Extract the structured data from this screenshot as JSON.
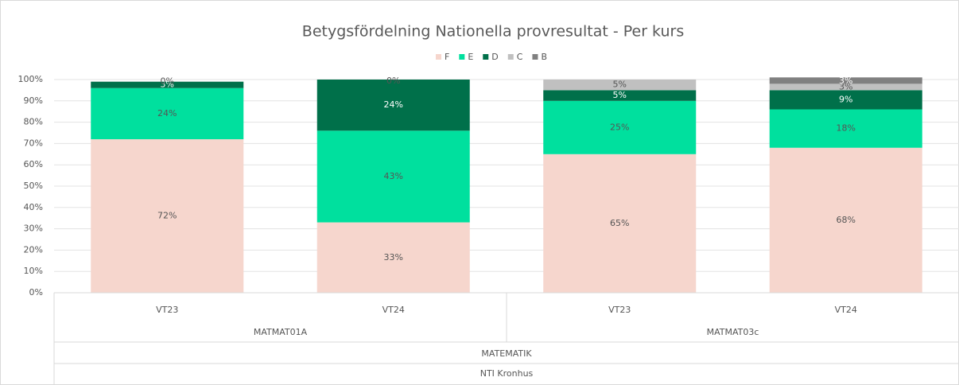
{
  "chart_data": {
    "type": "stacked_bar",
    "title": "Betygsfördelning Nationella provresultat - Per kurs",
    "categories": [
      "VT23",
      "VT24",
      "VT23",
      "VT24"
    ],
    "groups": [
      {
        "label": "MATMAT01A",
        "span": 2
      },
      {
        "label": "MATMAT03c",
        "span": 2
      }
    ],
    "group_levels": [
      "MATEMATIK",
      "NTI Kronhus"
    ],
    "series": [
      {
        "name": "F",
        "color": "#f6d6cd",
        "values": [
          72,
          33,
          65,
          68
        ],
        "value_labels": [
          "72%",
          "33%",
          "65%",
          "68%"
        ]
      },
      {
        "name": "E",
        "color": "#00e09e",
        "values": [
          24,
          43,
          25,
          18
        ],
        "value_labels": [
          "24%",
          "43%",
          "25%",
          "18%"
        ]
      },
      {
        "name": "D",
        "color": "#00704a",
        "values": [
          3,
          24,
          5,
          9
        ],
        "value_labels": [
          "3%",
          "24%",
          "5%",
          "9%"
        ]
      },
      {
        "name": "C",
        "color": "#c0c0c0",
        "values": [
          0,
          0,
          5,
          3
        ],
        "value_labels": [
          "0%",
          "0%",
          "5%",
          "3%"
        ]
      },
      {
        "name": "B",
        "color": "#808080",
        "values": [
          null,
          null,
          null,
          3
        ],
        "value_labels": [
          null,
          null,
          null,
          "3%"
        ]
      }
    ],
    "ylim": [
      0,
      100
    ],
    "yticks": [
      {
        "value": 0,
        "label": "0%"
      },
      {
        "value": 10,
        "label": "10%"
      },
      {
        "value": 20,
        "label": "20%"
      },
      {
        "value": 30,
        "label": "30%"
      },
      {
        "value": 40,
        "label": "40%"
      },
      {
        "value": 50,
        "label": "50%"
      },
      {
        "value": 60,
        "label": "60%"
      },
      {
        "value": 70,
        "label": "70%"
      },
      {
        "value": 80,
        "label": "80%"
      },
      {
        "value": 90,
        "label": "90%"
      },
      {
        "value": 100,
        "label": "100%"
      }
    ],
    "grid": true
  }
}
